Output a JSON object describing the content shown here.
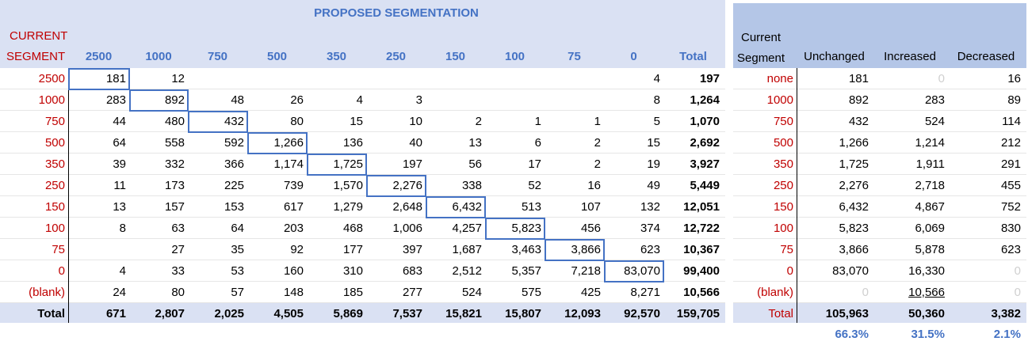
{
  "left": {
    "banner": "PROPOSED SEGMENTATION",
    "corner_line1": "CURRENT",
    "corner_line2": "SEGMENT",
    "col_headers": [
      "2500",
      "1000",
      "750",
      "500",
      "350",
      "250",
      "150",
      "100",
      "75",
      "0",
      "Total"
    ],
    "rows": [
      {
        "label": "2500",
        "cells": [
          "181",
          "12",
          "",
          "",
          "",
          "",
          "",
          "",
          "",
          "4",
          "197"
        ]
      },
      {
        "label": "1000",
        "cells": [
          "283",
          "892",
          "48",
          "26",
          "4",
          "3",
          "",
          "",
          "",
          "8",
          "1,264"
        ]
      },
      {
        "label": "750",
        "cells": [
          "44",
          "480",
          "432",
          "80",
          "15",
          "10",
          "2",
          "1",
          "1",
          "5",
          "1,070"
        ]
      },
      {
        "label": "500",
        "cells": [
          "64",
          "558",
          "592",
          "1,266",
          "136",
          "40",
          "13",
          "6",
          "2",
          "15",
          "2,692"
        ]
      },
      {
        "label": "350",
        "cells": [
          "39",
          "332",
          "366",
          "1,174",
          "1,725",
          "197",
          "56",
          "17",
          "2",
          "19",
          "3,927"
        ]
      },
      {
        "label": "250",
        "cells": [
          "11",
          "173",
          "225",
          "739",
          "1,570",
          "2,276",
          "338",
          "52",
          "16",
          "49",
          "5,449"
        ]
      },
      {
        "label": "150",
        "cells": [
          "13",
          "157",
          "153",
          "617",
          "1,279",
          "2,648",
          "6,432",
          "513",
          "107",
          "132",
          "12,051"
        ]
      },
      {
        "label": "100",
        "cells": [
          "8",
          "63",
          "64",
          "203",
          "468",
          "1,006",
          "4,257",
          "5,823",
          "456",
          "374",
          "12,722"
        ]
      },
      {
        "label": "75",
        "cells": [
          "",
          "27",
          "35",
          "92",
          "177",
          "397",
          "1,687",
          "3,463",
          "3,866",
          "623",
          "10,367"
        ]
      },
      {
        "label": "0",
        "cells": [
          "4",
          "33",
          "53",
          "160",
          "310",
          "683",
          "2,512",
          "5,357",
          "7,218",
          "83,070",
          "99,400"
        ]
      },
      {
        "label": "(blank)",
        "cells": [
          "24",
          "80",
          "57",
          "148",
          "185",
          "277",
          "524",
          "575",
          "425",
          "8,271",
          "10,566"
        ]
      }
    ],
    "total_label": "Total",
    "total_cells": [
      "671",
      "2,807",
      "2,025",
      "4,505",
      "5,869",
      "7,537",
      "15,821",
      "15,807",
      "12,093",
      "92,570",
      "159,705"
    ]
  },
  "right": {
    "hdr_current": "Current",
    "hdr_segment": "Segment",
    "col_headers": [
      "Unchanged",
      "Increased",
      "Decreased"
    ],
    "rows": [
      {
        "label": "none",
        "cells": [
          "181",
          "0",
          "16"
        ]
      },
      {
        "label": "1000",
        "cells": [
          "892",
          "283",
          "89"
        ]
      },
      {
        "label": "750",
        "cells": [
          "432",
          "524",
          "114"
        ]
      },
      {
        "label": "500",
        "cells": [
          "1,266",
          "1,214",
          "212"
        ]
      },
      {
        "label": "350",
        "cells": [
          "1,725",
          "1,911",
          "291"
        ]
      },
      {
        "label": "250",
        "cells": [
          "2,276",
          "2,718",
          "455"
        ]
      },
      {
        "label": "150",
        "cells": [
          "6,432",
          "4,867",
          "752"
        ]
      },
      {
        "label": "100",
        "cells": [
          "5,823",
          "6,069",
          "830"
        ]
      },
      {
        "label": "75",
        "cells": [
          "3,866",
          "5,878",
          "623"
        ]
      },
      {
        "label": "0",
        "cells": [
          "83,070",
          "16,330",
          "0"
        ]
      },
      {
        "label": "(blank)",
        "cells": [
          "0",
          "10,566",
          "0"
        ]
      }
    ],
    "total_label": "Total",
    "total_cells": [
      "105,963",
      "50,360",
      "3,382"
    ],
    "pct_cells": [
      "66.3%",
      "31.5%",
      "2.1%"
    ]
  },
  "colors": {
    "header_band": "#dae1f3",
    "header_band_right": "#b4c6e7",
    "accent_blue": "#4472c4",
    "label_red": "#c00000"
  }
}
